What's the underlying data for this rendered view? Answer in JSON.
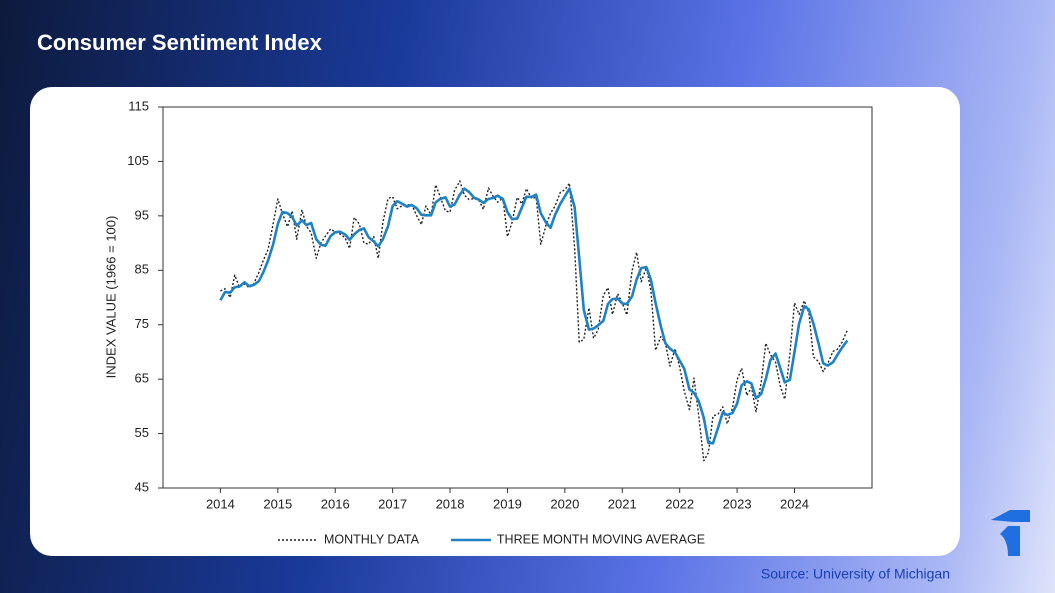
{
  "chart_data": {
    "type": "line",
    "title": "Consumer Sentiment Index",
    "ylabel": "INDEX VALUE (1966 = 100)",
    "source": "Source: University of Michigan",
    "xlim": [
      2013,
      2025.35
    ],
    "xticks": [
      2014,
      2015,
      2016,
      2017,
      2018,
      2019,
      2020,
      2021,
      2022,
      2023,
      2024
    ],
    "ylim": [
      45,
      115
    ],
    "yticks": [
      45,
      55,
      65,
      75,
      85,
      95,
      105,
      115
    ],
    "grid": false,
    "legend": "bottom",
    "x": [
      2014,
      2014.08,
      2014.17,
      2014.25,
      2014.33,
      2014.42,
      2014.5,
      2014.58,
      2014.67,
      2014.75,
      2014.83,
      2014.92,
      2015,
      2015.08,
      2015.17,
      2015.25,
      2015.33,
      2015.42,
      2015.5,
      2015.58,
      2015.67,
      2015.75,
      2015.83,
      2015.92,
      2016,
      2016.08,
      2016.17,
      2016.25,
      2016.33,
      2016.42,
      2016.5,
      2016.58,
      2016.67,
      2016.75,
      2016.83,
      2016.92,
      2017,
      2017.08,
      2017.17,
      2017.25,
      2017.33,
      2017.42,
      2017.5,
      2017.58,
      2017.67,
      2017.75,
      2017.83,
      2017.92,
      2018,
      2018.08,
      2018.17,
      2018.25,
      2018.33,
      2018.42,
      2018.5,
      2018.58,
      2018.67,
      2018.75,
      2018.83,
      2018.92,
      2019,
      2019.08,
      2019.17,
      2019.25,
      2019.33,
      2019.42,
      2019.5,
      2019.58,
      2019.67,
      2019.75,
      2019.83,
      2019.92,
      2020,
      2020.08,
      2020.17,
      2020.25,
      2020.33,
      2020.42,
      2020.5,
      2020.58,
      2020.67,
      2020.75,
      2020.83,
      2020.92,
      2021,
      2021.08,
      2021.17,
      2021.25,
      2021.33,
      2021.42,
      2021.5,
      2021.58,
      2021.67,
      2021.75,
      2021.83,
      2021.92,
      2022,
      2022.08,
      2022.17,
      2022.25,
      2022.33,
      2022.42,
      2022.5,
      2022.58,
      2022.67,
      2022.75,
      2022.83,
      2022.92,
      2023,
      2023.08,
      2023.17,
      2023.25,
      2023.33,
      2023.42,
      2023.5,
      2023.58,
      2023.67,
      2023.75,
      2023.83,
      2023.92,
      2024,
      2024.08,
      2024.17,
      2024.25,
      2024.33,
      2024.42,
      2024.5,
      2024.58,
      2024.67,
      2024.75,
      2024.83,
      2024.92
    ],
    "series": [
      {
        "name": "MONTHLY DATA",
        "color": "#222222",
        "line_style": "dotted",
        "values": [
          81.2,
          81.6,
          80.0,
          84.1,
          81.9,
          82.5,
          81.8,
          82.5,
          84.6,
          86.9,
          88.8,
          93.6,
          98.1,
          95.4,
          93.0,
          95.9,
          90.7,
          96.1,
          93.1,
          91.9,
          87.2,
          90.0,
          91.3,
          92.6,
          92.0,
          91.7,
          91.0,
          89.0,
          94.7,
          93.5,
          90.0,
          89.8,
          91.2,
          87.2,
          93.8,
          98.2,
          98.5,
          96.3,
          96.9,
          97.0,
          97.1,
          95.0,
          93.4,
          96.8,
          95.1,
          100.7,
          98.5,
          95.9,
          95.7,
          99.7,
          101.4,
          98.8,
          98.0,
          98.2,
          97.9,
          96.2,
          100.1,
          98.6,
          97.5,
          98.3,
          91.2,
          93.8,
          98.4,
          97.2,
          100.0,
          98.2,
          98.4,
          89.8,
          93.2,
          95.5,
          96.8,
          99.3,
          99.8,
          101.0,
          89.1,
          71.8,
          72.3,
          78.1,
          72.5,
          74.1,
          80.4,
          81.8,
          76.9,
          80.7,
          79.0,
          76.8,
          84.9,
          88.3,
          82.9,
          85.5,
          81.2,
          70.3,
          72.8,
          71.7,
          67.4,
          70.6,
          67.2,
          62.8,
          59.4,
          65.2,
          58.4,
          50.0,
          51.5,
          58.2,
          58.6,
          59.9,
          56.8,
          59.7,
          64.9,
          67.0,
          62.0,
          63.5,
          59.0,
          64.4,
          71.6,
          69.5,
          68.1,
          63.8,
          61.3,
          69.7,
          79.0,
          76.9,
          79.4,
          77.2,
          69.1,
          68.2,
          66.4,
          67.9,
          70.1,
          70.5,
          71.8,
          74.0
        ]
      },
      {
        "name": "THREE MONTH MOVING AVERAGE",
        "color": "#1f82c4",
        "line_style": "solid",
        "values": [
          79.5,
          81.0,
          80.9,
          81.9,
          82.0,
          82.8,
          82.1,
          82.3,
          83.0,
          84.7,
          86.8,
          89.8,
          93.5,
          95.7,
          95.5,
          94.8,
          93.2,
          94.2,
          93.3,
          93.7,
          90.7,
          89.7,
          89.5,
          91.3,
          92.0,
          92.1,
          91.6,
          90.6,
          91.6,
          92.4,
          92.7,
          91.1,
          90.3,
          89.4,
          90.7,
          93.1,
          96.8,
          97.7,
          97.2,
          96.7,
          97.0,
          96.4,
          95.2,
          95.1,
          95.1,
          97.5,
          98.1,
          98.4,
          96.7,
          97.1,
          98.9,
          100.0,
          99.4,
          98.3,
          98.0,
          97.4,
          98.1,
          98.3,
          98.7,
          98.1,
          95.7,
          94.4,
          94.5,
          96.5,
          98.5,
          98.5,
          98.9,
          95.5,
          93.8,
          92.8,
          95.2,
          97.2,
          98.6,
          100.0,
          96.6,
          87.3,
          77.7,
          74.1,
          74.3,
          74.9,
          75.7,
          78.8,
          79.7,
          79.8,
          78.9,
          78.8,
          80.2,
          83.3,
          85.4,
          85.6,
          83.2,
          79.0,
          74.8,
          71.6,
          70.6,
          69.9,
          68.4,
          66.9,
          63.1,
          62.5,
          61.0,
          57.9,
          53.3,
          53.2,
          56.1,
          58.9,
          58.4,
          58.8,
          60.5,
          63.9,
          64.6,
          64.2,
          61.5,
          62.3,
          65.0,
          68.5,
          69.7,
          67.1,
          64.4,
          64.9,
          70.0,
          75.2,
          78.4,
          77.8,
          75.2,
          71.5,
          67.9,
          67.5,
          68.1,
          69.5,
          70.8,
          72.1
        ]
      }
    ]
  }
}
